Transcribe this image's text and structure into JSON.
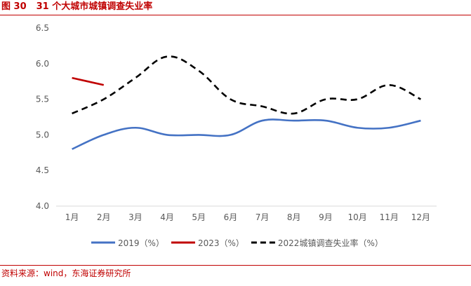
{
  "figure": {
    "number": "图 30",
    "title": "31 个大城市城镇调查失业率",
    "source": "资料来源：wind，东海证券研究所"
  },
  "chart_data": {
    "type": "line",
    "categories": [
      "1月",
      "2月",
      "3月",
      "4月",
      "5月",
      "6月",
      "7月",
      "8月",
      "9月",
      "10月",
      "11月",
      "12月"
    ],
    "ylim": [
      4.0,
      6.5
    ],
    "yticks": [
      "4.0",
      "4.5",
      "5.0",
      "5.5",
      "6.0",
      "6.5"
    ],
    "grid": false,
    "legend_position": "bottom",
    "series": [
      {
        "name": "2019（%）",
        "color": "#4472c4",
        "style": "solid",
        "values": [
          4.8,
          5.0,
          5.1,
          5.0,
          5.0,
          5.0,
          5.2,
          5.2,
          5.2,
          5.1,
          5.1,
          5.2
        ]
      },
      {
        "name": "2023（%）",
        "color": "#c00000",
        "style": "solid",
        "values": [
          5.8,
          5.7,
          null,
          null,
          null,
          null,
          null,
          null,
          null,
          null,
          null,
          null
        ]
      },
      {
        "name": "2022城镇调查失业率（%）",
        "color": "#000000",
        "style": "dashed",
        "values": [
          5.3,
          5.5,
          5.8,
          6.1,
          5.9,
          5.5,
          5.4,
          5.3,
          5.5,
          5.5,
          5.7,
          5.5
        ]
      }
    ]
  }
}
